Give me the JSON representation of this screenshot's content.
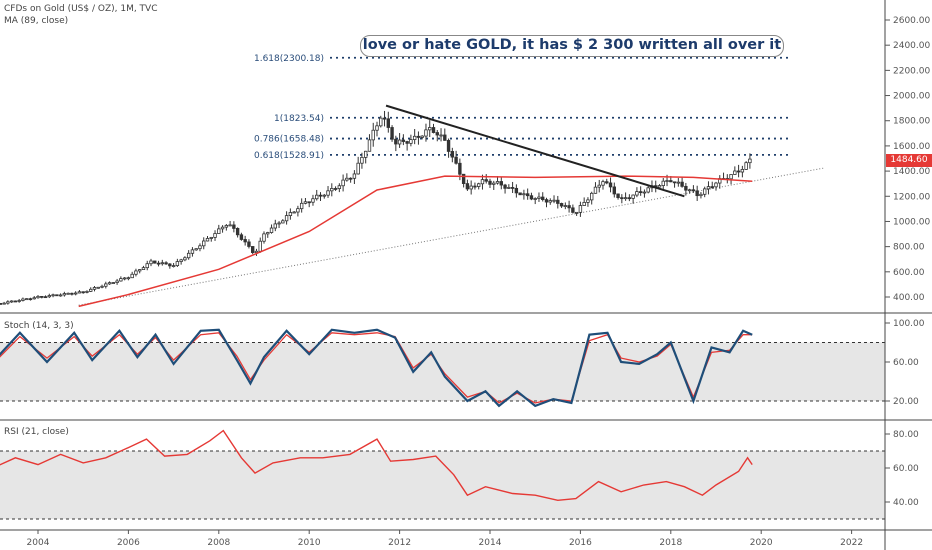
{
  "header": {
    "symbol": "CFDs on Gold (US$ / OZ), 1M, TVC",
    "ma_label": "MA (89, close)",
    "stoch_label": "Stoch (14, 3, 3)",
    "rsi_label": "RSI (21, close)"
  },
  "annotation": "love or hate GOLD, it has $ 2 300 written all over it",
  "last_price": "1484.60",
  "colors": {
    "ma": "#e53935",
    "stoch_k": "#1f4e79",
    "stoch_d": "#e53935",
    "rsi": "#e53935",
    "candle": "#333333",
    "fib": "#1f3f6b",
    "band": "#e6e6e6",
    "price_tag": "#e53935"
  },
  "chart_data": {
    "type": "candlestick",
    "x_ticks": [
      "2004",
      "2006",
      "2008",
      "2010",
      "2012",
      "2014",
      "2016",
      "2018",
      "2020",
      "2022"
    ],
    "price_axis": {
      "ticks": [
        "400.00",
        "600.00",
        "800.00",
        "1000.00",
        "1200.00",
        "1400.00",
        "1600.00",
        "1800.00",
        "2000.00",
        "2200.00",
        "2400.00",
        "2600.00"
      ],
      "ylim": [
        250,
        2700
      ]
    },
    "stoch_axis": {
      "ticks": [
        "20.00",
        "60.00",
        "100.00"
      ],
      "ylim": [
        0,
        105
      ],
      "band": [
        20,
        80
      ]
    },
    "rsi_axis": {
      "ticks": [
        "40.00",
        "60.00",
        "80.00"
      ],
      "ylim": [
        25,
        87
      ],
      "band": [
        30,
        70
      ]
    },
    "fib_levels": [
      {
        "label": "1.618(2300.18)",
        "value": 2300.18
      },
      {
        "label": "1(1823.54)",
        "value": 1823.54
      },
      {
        "label": "0.786(1658.48)",
        "value": 1658.48
      },
      {
        "label": "0.618(1528.91)",
        "value": 1528.91
      }
    ],
    "price_path": [
      [
        2003.0,
        340
      ],
      [
        2004.0,
        400
      ],
      [
        2005.0,
        440
      ],
      [
        2006.0,
        560
      ],
      [
        2006.5,
        680
      ],
      [
        2007.0,
        650
      ],
      [
        2008.0,
        930
      ],
      [
        2008.2,
        990
      ],
      [
        2008.8,
        740
      ],
      [
        2009.0,
        900
      ],
      [
        2009.9,
        1150
      ],
      [
        2010.5,
        1250
      ],
      [
        2011.0,
        1380
      ],
      [
        2011.6,
        1850
      ],
      [
        2011.9,
        1620
      ],
      [
        2012.3,
        1650
      ],
      [
        2012.7,
        1740
      ],
      [
        2013.0,
        1640
      ],
      [
        2013.5,
        1250
      ],
      [
        2013.8,
        1320
      ],
      [
        2014.2,
        1300
      ],
      [
        2014.8,
        1200
      ],
      [
        2015.5,
        1150
      ],
      [
        2015.9,
        1070
      ],
      [
        2016.5,
        1330
      ],
      [
        2016.9,
        1170
      ],
      [
        2017.5,
        1260
      ],
      [
        2018.0,
        1330
      ],
      [
        2018.6,
        1210
      ],
      [
        2019.0,
        1310
      ],
      [
        2019.5,
        1400
      ],
      [
        2019.8,
        1500
      ]
    ],
    "ma_path": [
      [
        2004.9,
        325
      ],
      [
        2006,
        420
      ],
      [
        2008,
        620
      ],
      [
        2010,
        920
      ],
      [
        2011.5,
        1250
      ],
      [
        2013,
        1360
      ],
      [
        2015,
        1350
      ],
      [
        2017,
        1360
      ],
      [
        2018.5,
        1350
      ],
      [
        2019.8,
        1320
      ]
    ],
    "trendline": [
      [
        2011.7,
        1920
      ],
      [
        2018.3,
        1200
      ]
    ],
    "support_line": [
      [
        2004.9,
        335
      ],
      [
        2021.4,
        1425
      ]
    ],
    "stoch_k_path": [
      [
        2003.0,
        60
      ],
      [
        2003.6,
        90
      ],
      [
        2004.2,
        60
      ],
      [
        2004.8,
        90
      ],
      [
        2005.2,
        62
      ],
      [
        2005.8,
        92
      ],
      [
        2006.2,
        65
      ],
      [
        2006.6,
        88
      ],
      [
        2007.0,
        58
      ],
      [
        2007.6,
        92
      ],
      [
        2008.0,
        93
      ],
      [
        2008.4,
        62
      ],
      [
        2008.7,
        38
      ],
      [
        2009.0,
        65
      ],
      [
        2009.5,
        92
      ],
      [
        2010.0,
        68
      ],
      [
        2010.5,
        93
      ],
      [
        2011.0,
        90
      ],
      [
        2011.5,
        93
      ],
      [
        2011.9,
        85
      ],
      [
        2012.3,
        50
      ],
      [
        2012.7,
        70
      ],
      [
        2013.0,
        45
      ],
      [
        2013.5,
        20
      ],
      [
        2013.9,
        30
      ],
      [
        2014.2,
        15
      ],
      [
        2014.6,
        30
      ],
      [
        2015.0,
        15
      ],
      [
        2015.4,
        22
      ],
      [
        2015.8,
        18
      ],
      [
        2016.2,
        88
      ],
      [
        2016.6,
        90
      ],
      [
        2016.9,
        60
      ],
      [
        2017.3,
        58
      ],
      [
        2017.7,
        68
      ],
      [
        2018.0,
        80
      ],
      [
        2018.5,
        20
      ],
      [
        2018.9,
        75
      ],
      [
        2019.3,
        70
      ],
      [
        2019.6,
        92
      ],
      [
        2019.8,
        88
      ]
    ],
    "stoch_d_path": [
      [
        2003.0,
        58
      ],
      [
        2003.6,
        86
      ],
      [
        2004.2,
        64
      ],
      [
        2004.8,
        86
      ],
      [
        2005.2,
        66
      ],
      [
        2005.8,
        88
      ],
      [
        2006.2,
        68
      ],
      [
        2006.6,
        85
      ],
      [
        2007.0,
        62
      ],
      [
        2007.6,
        88
      ],
      [
        2008.0,
        90
      ],
      [
        2008.4,
        66
      ],
      [
        2008.7,
        42
      ],
      [
        2009.0,
        62
      ],
      [
        2009.5,
        88
      ],
      [
        2010.0,
        70
      ],
      [
        2010.5,
        90
      ],
      [
        2011.0,
        88
      ],
      [
        2011.5,
        90
      ],
      [
        2011.9,
        86
      ],
      [
        2012.3,
        54
      ],
      [
        2012.7,
        68
      ],
      [
        2013.0,
        48
      ],
      [
        2013.5,
        24
      ],
      [
        2013.9,
        30
      ],
      [
        2014.2,
        18
      ],
      [
        2014.6,
        28
      ],
      [
        2015.0,
        18
      ],
      [
        2015.4,
        22
      ],
      [
        2015.8,
        20
      ],
      [
        2016.2,
        82
      ],
      [
        2016.6,
        88
      ],
      [
        2016.9,
        64
      ],
      [
        2017.3,
        60
      ],
      [
        2017.7,
        66
      ],
      [
        2018.0,
        78
      ],
      [
        2018.5,
        24
      ],
      [
        2018.9,
        70
      ],
      [
        2019.3,
        72
      ],
      [
        2019.6,
        88
      ],
      [
        2019.8,
        88
      ]
    ],
    "rsi_path": [
      [
        2003.0,
        60
      ],
      [
        2003.5,
        66
      ],
      [
        2004.0,
        62
      ],
      [
        2004.5,
        68
      ],
      [
        2005.0,
        63
      ],
      [
        2005.5,
        66
      ],
      [
        2006.0,
        72
      ],
      [
        2006.4,
        77
      ],
      [
        2006.8,
        67
      ],
      [
        2007.3,
        68
      ],
      [
        2007.8,
        76
      ],
      [
        2008.1,
        82
      ],
      [
        2008.5,
        66
      ],
      [
        2008.8,
        57
      ],
      [
        2009.2,
        63
      ],
      [
        2009.8,
        66
      ],
      [
        2010.3,
        66
      ],
      [
        2010.9,
        68
      ],
      [
        2011.5,
        77
      ],
      [
        2011.8,
        64
      ],
      [
        2012.3,
        65
      ],
      [
        2012.8,
        67
      ],
      [
        2013.2,
        56
      ],
      [
        2013.5,
        44
      ],
      [
        2013.9,
        49
      ],
      [
        2014.5,
        45
      ],
      [
        2015.0,
        44
      ],
      [
        2015.5,
        41
      ],
      [
        2015.9,
        42
      ],
      [
        2016.4,
        52
      ],
      [
        2016.9,
        46
      ],
      [
        2017.4,
        50
      ],
      [
        2017.9,
        52
      ],
      [
        2018.3,
        49
      ],
      [
        2018.7,
        44
      ],
      [
        2019.0,
        50
      ],
      [
        2019.5,
        58
      ],
      [
        2019.7,
        66
      ],
      [
        2019.8,
        62
      ]
    ]
  }
}
